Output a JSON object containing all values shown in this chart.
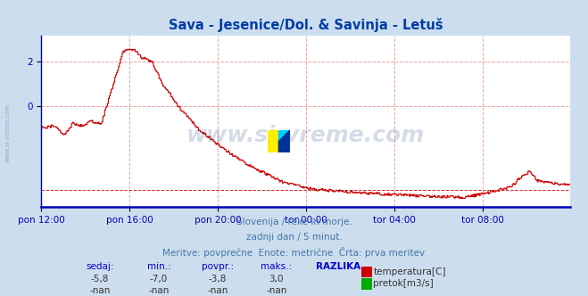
{
  "title": "Sava - Jesenice/Dol. & Savinja - Letuš",
  "title_color": "#003da5",
  "bg_color": "#ccdded",
  "plot_bg_color": "#ffffff",
  "grid_color": "#ee9999",
  "line_color": "#cc0000",
  "axis_color": "#0000bb",
  "xlabel_ticks": [
    "pon 12:00",
    "pon 16:00",
    "pon 20:00",
    "tor 00:00",
    "tor 04:00",
    "tor 08:00"
  ],
  "xlabel_tick_positions": [
    0,
    96,
    192,
    288,
    384,
    480
  ],
  "total_points": 576,
  "ylim": [
    -4.6,
    3.2
  ],
  "yticks": [
    0,
    2
  ],
  "ytick_labels": [
    "0",
    "2"
  ],
  "subtitle_lines": [
    "Slovenija / reke in morje.",
    "zadnji dan / 5 minut.",
    "Meritve: povprečne  Enote: metrične  Črta: prva meritev"
  ],
  "subtitle_color": "#4477aa",
  "table_headers": [
    "sedaj:",
    "min.:",
    "povpr.:",
    "maks.:",
    "RAZLIKA"
  ],
  "table_header_color": "#0000cc",
  "table_row1": [
    "-5,8",
    "-7,0",
    "-3,8",
    "3,0"
  ],
  "table_row2": [
    "-nan",
    "-nan",
    "-nan",
    "-nan"
  ],
  "legend_labels": [
    "temperatura[C]",
    "pretok[m3/s]"
  ],
  "legend_colors": [
    "#cc0000",
    "#00aa00"
  ],
  "watermark": "www.si-vreme.com",
  "watermark_color": "#1a3a7a",
  "watermark_alpha": 0.18,
  "avg_val": -3.8,
  "side_watermark_color": "#7799bb",
  "side_watermark_alpha": 0.7
}
